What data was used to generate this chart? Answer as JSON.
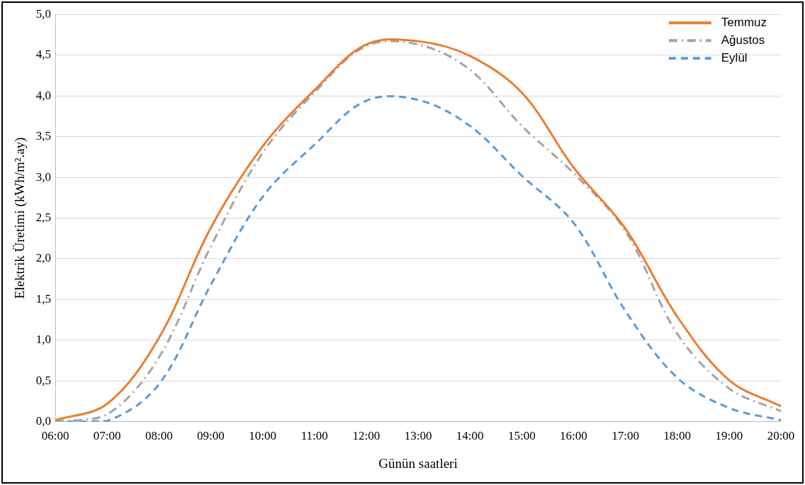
{
  "chart_data": {
    "type": "line",
    "xlabel": "Günün saatleri",
    "ylabel": "Elektrik Üretimi (kWh/m².ay)",
    "categories": [
      "06:00",
      "07:00",
      "08:00",
      "09:00",
      "10:00",
      "11:00",
      "12:00",
      "13:00",
      "14:00",
      "15:00",
      "16:00",
      "17:00",
      "18:00",
      "19:00",
      "20:00"
    ],
    "series": [
      {
        "name": "Temmuz",
        "color": "#ed7d31",
        "line_style": "solid",
        "values": [
          0.02,
          0.22,
          1.03,
          2.38,
          3.38,
          4.07,
          4.63,
          4.67,
          4.49,
          4.04,
          3.12,
          2.37,
          1.29,
          0.51,
          0.19
        ]
      },
      {
        "name": "Ağustos",
        "color": "#a5a5a5",
        "line_style": "dashdot",
        "values": [
          0.0,
          0.09,
          0.79,
          2.15,
          3.3,
          4.04,
          4.61,
          4.63,
          4.32,
          3.63,
          3.05,
          2.34,
          1.08,
          0.41,
          0.13
        ]
      },
      {
        "name": "Eylül",
        "color": "#5b9bd5",
        "line_style": "dashed",
        "values": [
          0.0,
          0.01,
          0.46,
          1.68,
          2.76,
          3.4,
          3.94,
          3.95,
          3.63,
          3.02,
          2.44,
          1.36,
          0.54,
          0.17,
          0.02
        ]
      }
    ],
    "ylim": [
      0,
      5
    ],
    "yticks": [
      {
        "value": 0,
        "label": "0,0"
      },
      {
        "value": 0.5,
        "label": "0,5"
      },
      {
        "value": 1,
        "label": "1,0"
      },
      {
        "value": 1.5,
        "label": "1,5"
      },
      {
        "value": 2,
        "label": "2,0"
      },
      {
        "value": 2.5,
        "label": "2,5"
      },
      {
        "value": 3,
        "label": "3,0"
      },
      {
        "value": 3.5,
        "label": "3,5"
      },
      {
        "value": 4,
        "label": "4,0"
      },
      {
        "value": 4.5,
        "label": "4,5"
      },
      {
        "value": 5,
        "label": "5,0"
      }
    ],
    "grid": "y",
    "legend": "top right",
    "marker": "none"
  }
}
